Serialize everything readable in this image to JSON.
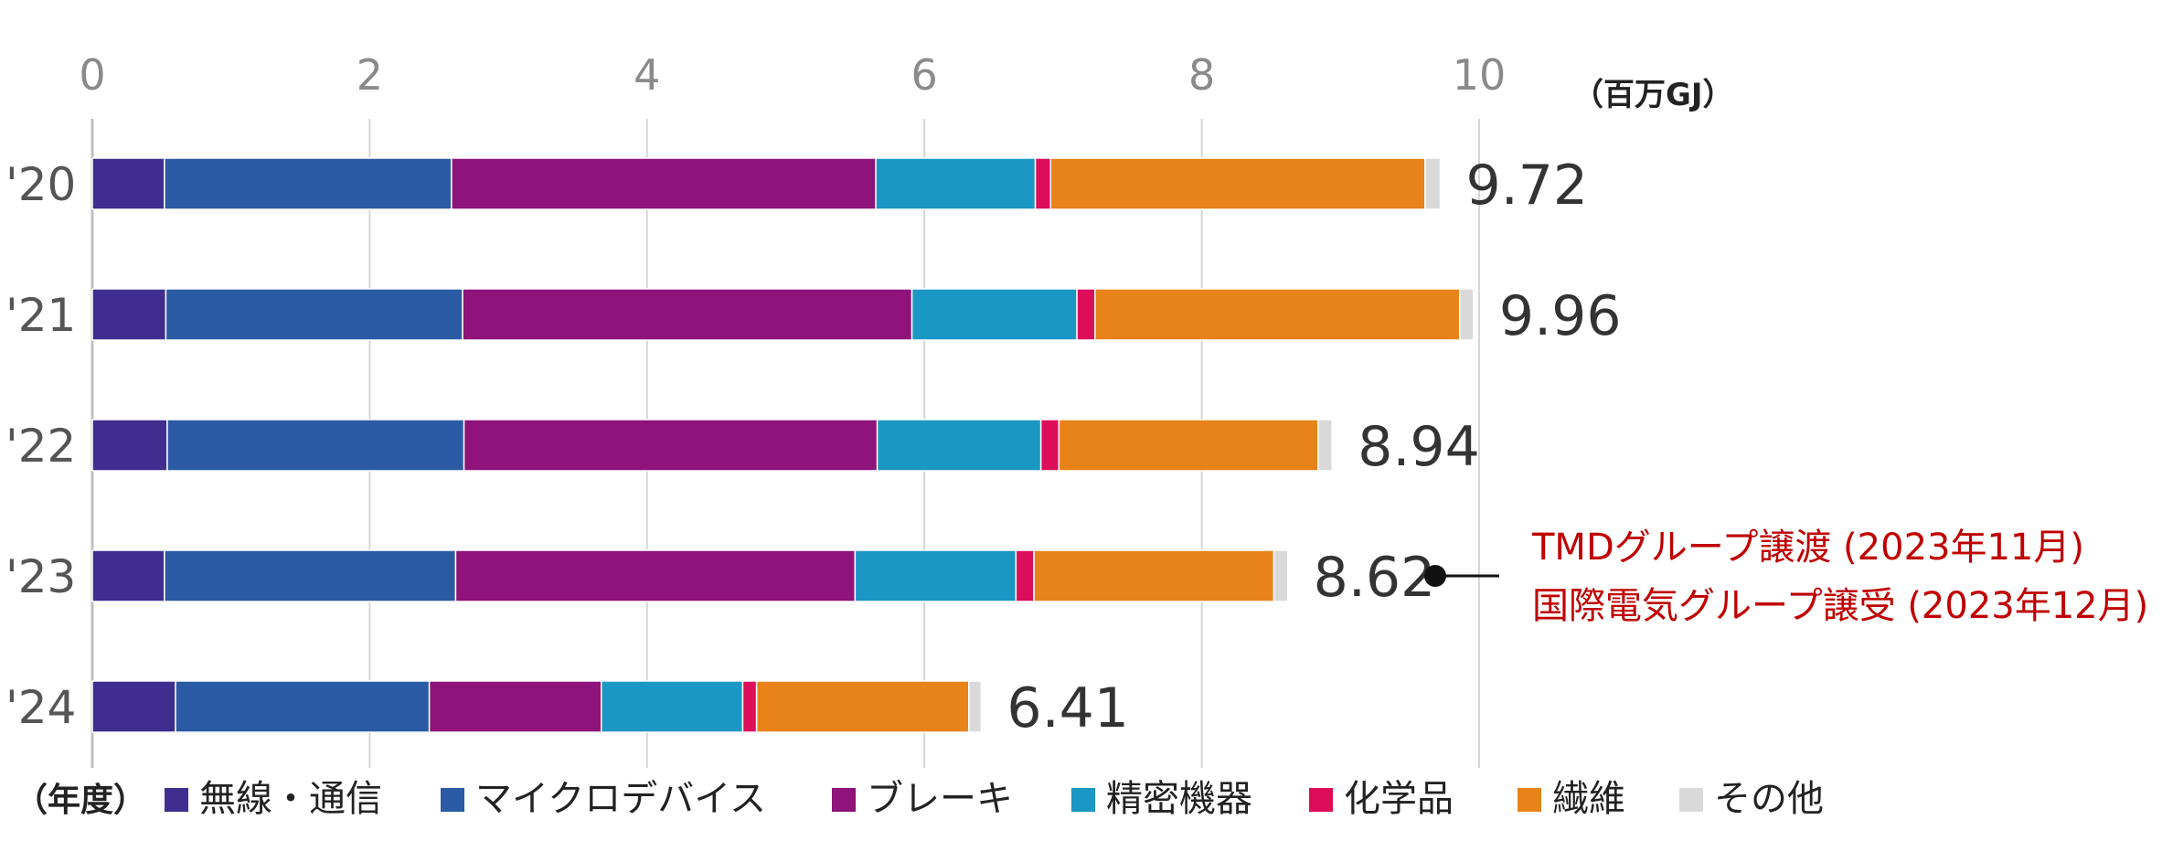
{
  "chart_data": {
    "type": "bar",
    "orientation": "horizontal",
    "stacked": true,
    "categories": [
      "'20",
      "'21",
      "'22",
      "'23",
      "'24"
    ],
    "totals": [
      "9.72",
      "9.96",
      "8.94",
      "8.62",
      "6.41"
    ],
    "series": [
      {
        "name": "無線・通信",
        "color": "#3f2d8f",
        "values": [
          0.52,
          0.53,
          0.54,
          0.52,
          0.6
        ]
      },
      {
        "name": "マイクロデバイス",
        "color": "#2a5ba4",
        "values": [
          2.07,
          2.14,
          2.14,
          2.1,
          1.83
        ]
      },
      {
        "name": "ブレーキ",
        "color": "#8e137a",
        "values": [
          3.06,
          3.24,
          2.98,
          2.88,
          1.24
        ]
      },
      {
        "name": "精密機器",
        "color": "#1a97c2",
        "values": [
          1.15,
          1.19,
          1.18,
          1.16,
          1.02
        ]
      },
      {
        "name": "化学品",
        "color": "#dc0e5a",
        "values": [
          0.11,
          0.13,
          0.13,
          0.13,
          0.1
        ]
      },
      {
        "name": "繊維",
        "color": "#e8831a",
        "values": [
          2.7,
          2.63,
          1.87,
          1.73,
          1.53
        ]
      },
      {
        "name": "その他",
        "color": "#d9d9d9",
        "values": [
          0.11,
          0.1,
          0.1,
          0.1,
          0.09
        ]
      }
    ],
    "x_ticks": [
      "0",
      "2",
      "4",
      "6",
      "8",
      "10"
    ],
    "xlim": [
      0,
      10
    ],
    "unit_label": "（百万GJ）",
    "category_axis_label": "（年度）",
    "grid": true,
    "legend_position": "bottom",
    "annotation": {
      "category_index": 3,
      "lines": [
        "TMDグループ譲渡 (2023年11月)",
        "国際電気グループ譲受 (2023年12月)"
      ],
      "color": "#c00000"
    }
  }
}
